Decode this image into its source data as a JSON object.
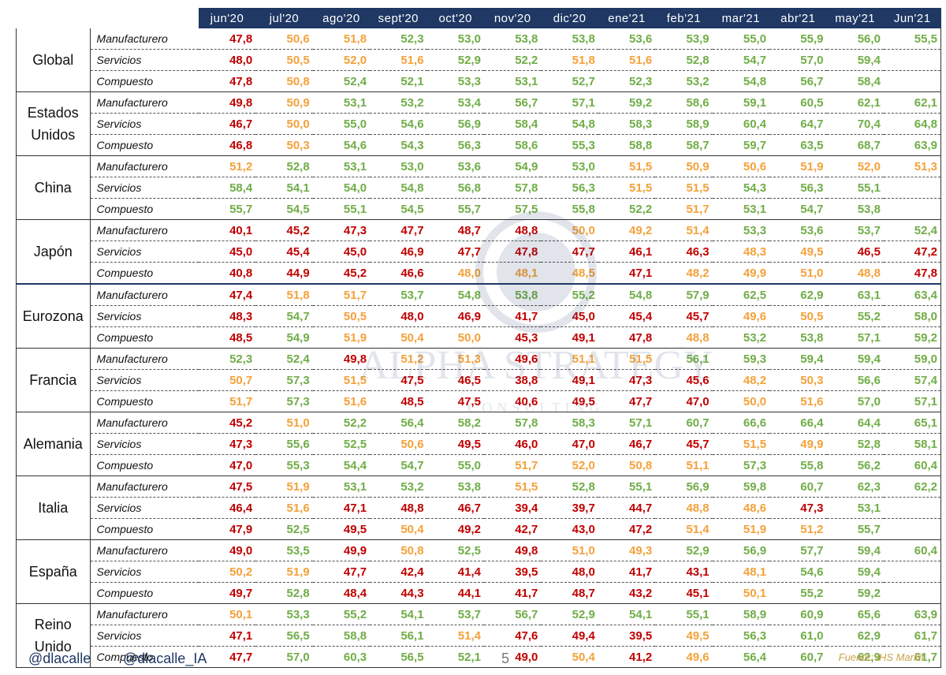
{
  "months": [
    "jun'20",
    "jul'20",
    "ago'20",
    "sept'20",
    "oct'20",
    "nov'20",
    "dic'20",
    "ene'21",
    "feb'21",
    "mar'21",
    "abr'21",
    "may'21",
    "Jun'21"
  ],
  "groups": [
    {
      "name": "Global",
      "rows": [
        {
          "sector": "Manufacturero",
          "values": [
            "47,8",
            "50,6",
            "51,8",
            "52,3",
            "53,0",
            "53,8",
            "53,8",
            "53,6",
            "53,9",
            "55,0",
            "55,9",
            "56,0",
            "55,5"
          ],
          "colors": [
            "r",
            "o",
            "o",
            "g",
            "g",
            "g",
            "g",
            "g",
            "g",
            "g",
            "g",
            "g",
            "g"
          ]
        },
        {
          "sector": "Servicios",
          "values": [
            "48,0",
            "50,5",
            "52,0",
            "51,6",
            "52,9",
            "52,2",
            "51,8",
            "51,6",
            "52,8",
            "54,7",
            "57,0",
            "59,4",
            ""
          ],
          "colors": [
            "r",
            "o",
            "o",
            "o",
            "g",
            "g",
            "o",
            "o",
            "g",
            "g",
            "g",
            "g",
            ""
          ]
        },
        {
          "sector": "Compuesto",
          "values": [
            "47,8",
            "50,8",
            "52,4",
            "52,1",
            "53,3",
            "53,1",
            "52,7",
            "52,3",
            "53,2",
            "54,8",
            "56,7",
            "58,4",
            ""
          ],
          "colors": [
            "r",
            "o",
            "g",
            "g",
            "g",
            "g",
            "g",
            "g",
            "g",
            "g",
            "g",
            "g",
            ""
          ]
        }
      ]
    },
    {
      "name": "Estados Unidos",
      "rows": [
        {
          "sector": "Manufacturero",
          "values": [
            "49,8",
            "50,9",
            "53,1",
            "53,2",
            "53,4",
            "56,7",
            "57,1",
            "59,2",
            "58,6",
            "59,1",
            "60,5",
            "62,1",
            "62,1"
          ],
          "colors": [
            "r",
            "o",
            "g",
            "g",
            "g",
            "g",
            "g",
            "g",
            "g",
            "g",
            "g",
            "g",
            "g"
          ]
        },
        {
          "sector": "Servicios",
          "values": [
            "46,7",
            "50,0",
            "55,0",
            "54,6",
            "56,9",
            "58,4",
            "54,8",
            "58,3",
            "58,9",
            "60,4",
            "64,7",
            "70,4",
            "64,8"
          ],
          "colors": [
            "r",
            "o",
            "g",
            "g",
            "g",
            "g",
            "g",
            "g",
            "g",
            "g",
            "g",
            "g",
            "g"
          ]
        },
        {
          "sector": "Compuesto",
          "values": [
            "46,8",
            "50,3",
            "54,6",
            "54,3",
            "56,3",
            "58,6",
            "55,3",
            "58,8",
            "58,7",
            "59,7",
            "63,5",
            "68,7",
            "63,9"
          ],
          "colors": [
            "r",
            "o",
            "g",
            "g",
            "g",
            "g",
            "g",
            "g",
            "g",
            "g",
            "g",
            "g",
            "g"
          ]
        }
      ]
    },
    {
      "name": "China",
      "rows": [
        {
          "sector": "Manufacturero",
          "values": [
            "51,2",
            "52,8",
            "53,1",
            "53,0",
            "53,6",
            "54,9",
            "53,0",
            "51,5",
            "50,9",
            "50,6",
            "51,9",
            "52,0",
            "51,3"
          ],
          "colors": [
            "o",
            "g",
            "g",
            "g",
            "g",
            "g",
            "g",
            "o",
            "o",
            "o",
            "o",
            "o",
            "o"
          ]
        },
        {
          "sector": "Servicios",
          "values": [
            "58,4",
            "54,1",
            "54,0",
            "54,8",
            "56,8",
            "57,8",
            "56,3",
            "51,5",
            "51,5",
            "54,3",
            "56,3",
            "55,1",
            ""
          ],
          "colors": [
            "g",
            "g",
            "g",
            "g",
            "g",
            "g",
            "g",
            "o",
            "o",
            "g",
            "g",
            "g",
            ""
          ]
        },
        {
          "sector": "Compuesto",
          "values": [
            "55,7",
            "54,5",
            "55,1",
            "54,5",
            "55,7",
            "57,5",
            "55,8",
            "52,2",
            "51,7",
            "53,1",
            "54,7",
            "53,8",
            ""
          ],
          "colors": [
            "g",
            "g",
            "g",
            "g",
            "g",
            "g",
            "g",
            "g",
            "o",
            "g",
            "g",
            "g",
            ""
          ]
        }
      ]
    },
    {
      "name": "Japón",
      "rows": [
        {
          "sector": "Manufacturero",
          "values": [
            "40,1",
            "45,2",
            "47,3",
            "47,7",
            "48,7",
            "48,8",
            "50,0",
            "49,2",
            "51,4",
            "53,3",
            "53,6",
            "53,7",
            "52,4"
          ],
          "colors": [
            "r",
            "r",
            "r",
            "r",
            "r",
            "r",
            "o",
            "o",
            "o",
            "g",
            "g",
            "g",
            "g"
          ]
        },
        {
          "sector": "Servicios",
          "values": [
            "45,0",
            "45,4",
            "45,0",
            "46,9",
            "47,7",
            "47,8",
            "47,7",
            "46,1",
            "46,3",
            "48,3",
            "49,5",
            "46,5",
            "47,2"
          ],
          "colors": [
            "r",
            "r",
            "r",
            "r",
            "r",
            "r",
            "r",
            "r",
            "r",
            "o",
            "o",
            "r",
            "r"
          ]
        },
        {
          "sector": "Compuesto",
          "values": [
            "40,8",
            "44,9",
            "45,2",
            "46,6",
            "48,0",
            "48,1",
            "48,5",
            "47,1",
            "48,2",
            "49,9",
            "51,0",
            "48,8",
            "47,8"
          ],
          "colors": [
            "r",
            "r",
            "r",
            "r",
            "o",
            "o",
            "o",
            "r",
            "o",
            "o",
            "o",
            "o",
            "r"
          ]
        }
      ]
    },
    {
      "name": "Eurozona",
      "rows": [
        {
          "sector": "Manufacturero",
          "values": [
            "47,4",
            "51,8",
            "51,7",
            "53,7",
            "54,8",
            "53,8",
            "55,2",
            "54,8",
            "57,9",
            "62,5",
            "62,9",
            "63,1",
            "63,4"
          ],
          "colors": [
            "r",
            "o",
            "o",
            "g",
            "g",
            "g",
            "g",
            "g",
            "g",
            "g",
            "g",
            "g",
            "g"
          ]
        },
        {
          "sector": "Servicios",
          "values": [
            "48,3",
            "54,7",
            "50,5",
            "48,0",
            "46,9",
            "41,7",
            "45,0",
            "45,4",
            "45,7",
            "49,6",
            "50,5",
            "55,2",
            "58,0"
          ],
          "colors": [
            "r",
            "g",
            "o",
            "r",
            "r",
            "r",
            "r",
            "r",
            "r",
            "o",
            "o",
            "g",
            "g"
          ]
        },
        {
          "sector": "Compuesto",
          "values": [
            "48,5",
            "54,9",
            "51,9",
            "50,4",
            "50,0",
            "45,3",
            "49,1",
            "47,8",
            "48,8",
            "53,2",
            "53,8",
            "57,1",
            "59,2"
          ],
          "colors": [
            "r",
            "g",
            "o",
            "o",
            "o",
            "r",
            "r",
            "r",
            "o",
            "g",
            "g",
            "g",
            "g"
          ]
        }
      ]
    },
    {
      "name": "Francia",
      "rows": [
        {
          "sector": "Manufacturero",
          "values": [
            "52,3",
            "52,4",
            "49,8",
            "51,2",
            "51,3",
            "49,6",
            "51,1",
            "51,5",
            "56,1",
            "59,3",
            "59,4",
            "59,4",
            "59,0"
          ],
          "colors": [
            "g",
            "g",
            "r",
            "o",
            "o",
            "r",
            "o",
            "o",
            "g",
            "g",
            "g",
            "g",
            "g"
          ]
        },
        {
          "sector": "Servicios",
          "values": [
            "50,7",
            "57,3",
            "51,5",
            "47,5",
            "46,5",
            "38,8",
            "49,1",
            "47,3",
            "45,6",
            "48,2",
            "50,3",
            "56,6",
            "57,4"
          ],
          "colors": [
            "o",
            "g",
            "o",
            "r",
            "r",
            "r",
            "r",
            "r",
            "r",
            "o",
            "o",
            "g",
            "g"
          ]
        },
        {
          "sector": "Compuesto",
          "values": [
            "51,7",
            "57,3",
            "51,6",
            "48,5",
            "47,5",
            "40,6",
            "49,5",
            "47,7",
            "47,0",
            "50,0",
            "51,6",
            "57,0",
            "57,1"
          ],
          "colors": [
            "o",
            "g",
            "o",
            "r",
            "r",
            "r",
            "r",
            "r",
            "r",
            "o",
            "o",
            "g",
            "g"
          ]
        }
      ]
    },
    {
      "name": "Alemania",
      "rows": [
        {
          "sector": "Manufacturero",
          "values": [
            "45,2",
            "51,0",
            "52,2",
            "56,4",
            "58,2",
            "57,8",
            "58,3",
            "57,1",
            "60,7",
            "66,6",
            "66,4",
            "64,4",
            "65,1"
          ],
          "colors": [
            "r",
            "o",
            "g",
            "g",
            "g",
            "g",
            "g",
            "g",
            "g",
            "g",
            "g",
            "g",
            "g"
          ]
        },
        {
          "sector": "Servicios",
          "values": [
            "47,3",
            "55,6",
            "52,5",
            "50,6",
            "49,5",
            "46,0",
            "47,0",
            "46,7",
            "45,7",
            "51,5",
            "49,9",
            "52,8",
            "58,1"
          ],
          "colors": [
            "r",
            "g",
            "g",
            "o",
            "r",
            "r",
            "r",
            "r",
            "r",
            "o",
            "o",
            "g",
            "g"
          ]
        },
        {
          "sector": "Compuesto",
          "values": [
            "47,0",
            "55,3",
            "54,4",
            "54,7",
            "55,0",
            "51,7",
            "52,0",
            "50,8",
            "51,1",
            "57,3",
            "55,8",
            "56,2",
            "60,4"
          ],
          "colors": [
            "r",
            "g",
            "g",
            "g",
            "g",
            "o",
            "o",
            "o",
            "o",
            "g",
            "g",
            "g",
            "g"
          ]
        }
      ]
    },
    {
      "name": "Italia",
      "rows": [
        {
          "sector": "Manufacturero",
          "values": [
            "47,5",
            "51,9",
            "53,1",
            "53,2",
            "53,8",
            "51,5",
            "52,8",
            "55,1",
            "56,9",
            "59,8",
            "60,7",
            "62,3",
            "62,2"
          ],
          "colors": [
            "r",
            "o",
            "g",
            "g",
            "g",
            "o",
            "g",
            "g",
            "g",
            "g",
            "g",
            "g",
            "g"
          ]
        },
        {
          "sector": "Servicios",
          "values": [
            "46,4",
            "51,6",
            "47,1",
            "48,8",
            "46,7",
            "39,4",
            "39,7",
            "44,7",
            "48,8",
            "48,6",
            "47,3",
            "53,1",
            ""
          ],
          "colors": [
            "r",
            "o",
            "r",
            "r",
            "r",
            "r",
            "r",
            "r",
            "o",
            "o",
            "r",
            "g",
            ""
          ]
        },
        {
          "sector": "Compuesto",
          "values": [
            "47,9",
            "52,5",
            "49,5",
            "50,4",
            "49,2",
            "42,7",
            "43,0",
            "47,2",
            "51,4",
            "51,9",
            "51,2",
            "55,7",
            ""
          ],
          "colors": [
            "r",
            "g",
            "r",
            "o",
            "r",
            "r",
            "r",
            "r",
            "o",
            "o",
            "o",
            "g",
            ""
          ]
        }
      ]
    },
    {
      "name": "España",
      "rows": [
        {
          "sector": "Manufacturero",
          "values": [
            "49,0",
            "53,5",
            "49,9",
            "50,8",
            "52,5",
            "49,8",
            "51,0",
            "49,3",
            "52,9",
            "56,9",
            "57,7",
            "59,4",
            "60,4"
          ],
          "colors": [
            "r",
            "g",
            "r",
            "o",
            "g",
            "r",
            "o",
            "o",
            "g",
            "g",
            "g",
            "g",
            "g"
          ]
        },
        {
          "sector": "Servicios",
          "values": [
            "50,2",
            "51,9",
            "47,7",
            "42,4",
            "41,4",
            "39,5",
            "48,0",
            "41,7",
            "43,1",
            "48,1",
            "54,6",
            "59,4",
            ""
          ],
          "colors": [
            "o",
            "o",
            "r",
            "r",
            "r",
            "r",
            "r",
            "r",
            "r",
            "o",
            "g",
            "g",
            ""
          ]
        },
        {
          "sector": "Compuesto",
          "values": [
            "49,7",
            "52,8",
            "48,4",
            "44,3",
            "44,1",
            "41,7",
            "48,7",
            "43,2",
            "45,1",
            "50,1",
            "55,2",
            "59,2",
            ""
          ],
          "colors": [
            "r",
            "g",
            "r",
            "r",
            "r",
            "r",
            "r",
            "r",
            "r",
            "o",
            "g",
            "g",
            ""
          ]
        }
      ]
    },
    {
      "name": "Reino Unido",
      "rows": [
        {
          "sector": "Manufacturero",
          "values": [
            "50,1",
            "53,3",
            "55,2",
            "54,1",
            "53,7",
            "56,7",
            "52,9",
            "54,1",
            "55,1",
            "58,9",
            "60,9",
            "65,6",
            "63,9"
          ],
          "colors": [
            "o",
            "g",
            "g",
            "g",
            "g",
            "g",
            "g",
            "g",
            "g",
            "g",
            "g",
            "g",
            "g"
          ]
        },
        {
          "sector": "Servicios",
          "values": [
            "47,1",
            "56,5",
            "58,8",
            "56,1",
            "51,4",
            "47,6",
            "49,4",
            "39,5",
            "49,5",
            "56,3",
            "61,0",
            "62,9",
            "61,7"
          ],
          "colors": [
            "r",
            "g",
            "g",
            "g",
            "o",
            "r",
            "r",
            "r",
            "o",
            "g",
            "g",
            "g",
            "g"
          ]
        },
        {
          "sector": "Compuesto",
          "values": [
            "47,7",
            "57,0",
            "60,3",
            "56,5",
            "52,1",
            "49,0",
            "50,4",
            "41,2",
            "49,6",
            "56,4",
            "60,7",
            "62,9",
            "61,7"
          ],
          "colors": [
            "r",
            "g",
            "g",
            "g",
            "g",
            "r",
            "o",
            "r",
            "o",
            "g",
            "g",
            "g",
            "g"
          ]
        }
      ]
    }
  ],
  "colors": {
    "header_bg": "#1F3864",
    "red": "#C00000",
    "orange": "#F4A13A",
    "green": "#70AD47"
  },
  "footer": {
    "handle1": "@dlacalle",
    "handle2": "@dlacalle_IA",
    "page_number": "5",
    "source": "Fuente: IHS Markit"
  },
  "watermark": {
    "text": "ALPHA STRATEGY",
    "subtext": "CONSULTING"
  }
}
